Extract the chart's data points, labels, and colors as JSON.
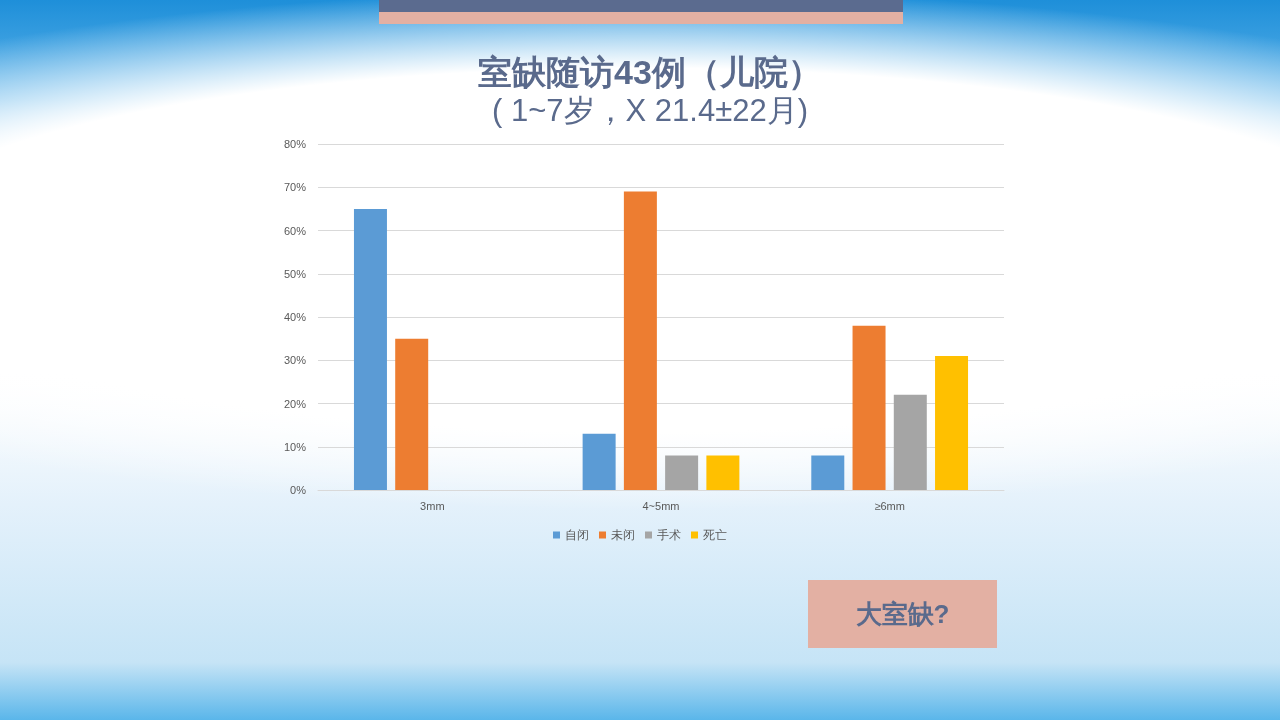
{
  "chart_data": {
    "type": "bar",
    "title": "室缺随访43例（儿院）",
    "subtitle": "( 1~7岁，X 21.4±22月)",
    "categories": [
      "3mm",
      "4~5mm",
      "≥6mm"
    ],
    "series": [
      {
        "name": "自闭",
        "color": "#5b9bd5",
        "values": [
          65,
          13,
          8
        ]
      },
      {
        "name": "未闭",
        "color": "#ed7d31",
        "values": [
          35,
          69,
          38
        ]
      },
      {
        "name": "手术",
        "color": "#a5a5a5",
        "values": [
          0,
          8,
          22
        ]
      },
      {
        "name": "死亡",
        "color": "#ffc000",
        "values": [
          0,
          8,
          31
        ]
      }
    ],
    "ylim": [
      0,
      80
    ],
    "yticks": [
      {
        "value": 0,
        "label": "0%"
      },
      {
        "value": 10,
        "label": "10%"
      },
      {
        "value": 20,
        "label": "20%"
      },
      {
        "value": 30,
        "label": "30%"
      },
      {
        "value": 40,
        "label": "40%"
      },
      {
        "value": 50,
        "label": "50%"
      },
      {
        "value": 60,
        "label": "60%"
      },
      {
        "value": 70,
        "label": "70%"
      },
      {
        "value": 80,
        "label": "80%"
      }
    ],
    "grid": "y",
    "legend": "bottom",
    "annotations": [
      "大室缺?"
    ]
  }
}
